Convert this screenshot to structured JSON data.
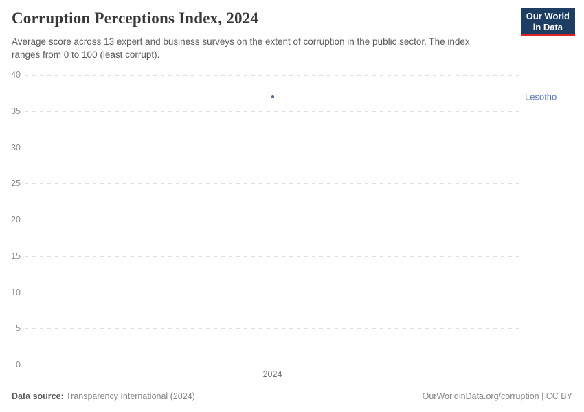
{
  "header": {
    "title": "Corruption Perceptions Index, 2024",
    "subtitle": "Average score across 13 expert and business surveys on the extent of corruption in the public sector. The index ranges from 0 to 100 (least corrupt).",
    "logo": {
      "line1": "Our World",
      "line2": "in Data",
      "bg_color": "#1d3d63",
      "accent_color": "#dc2227"
    }
  },
  "chart_data": {
    "type": "scatter",
    "title": "Corruption Perceptions Index, 2024",
    "x": [
      2024
    ],
    "x_tick_labels": [
      "2024"
    ],
    "y_ticks": [
      0,
      5,
      10,
      15,
      20,
      25,
      30,
      35,
      40
    ],
    "ylim": [
      0,
      40
    ],
    "grid": "horizontal-dashed",
    "legend_position": "right-of-plot",
    "series": [
      {
        "name": "Lesotho",
        "x": 2024,
        "y": 37,
        "color": "#4c6a9c",
        "label_color": "#5b7bb4"
      }
    ]
  },
  "footer": {
    "datasource_label": "Data source:",
    "datasource_value": "Transparency International (2024)",
    "rights": "OurWorldinData.org/corruption | CC BY"
  }
}
